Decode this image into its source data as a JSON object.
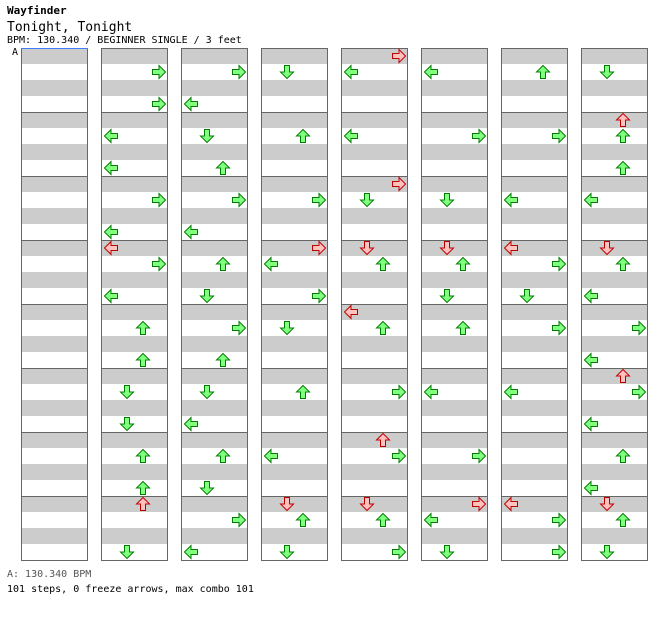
{
  "header": {
    "title": "Wayfinder",
    "song": "Tonight, Tonight",
    "info": "BPM: 130.340 / BEGINNER SINGLE / 3 feet",
    "bpm_marker": "A"
  },
  "footer": {
    "bpm_line": "A: 130.340 BPM",
    "stats": "101 steps, 0 freeze arrows, max combo 101"
  },
  "colors": {
    "stripe": "#cccccc",
    "arrow_green_fill": "#80ff80",
    "arrow_green_stroke": "#008000",
    "arrow_red_fill": "#ffc0c0",
    "arrow_red_stroke": "#c00000",
    "bpm_line": "#4080ff"
  },
  "chart_data": {
    "type": "step-chart",
    "columns": 8,
    "measures_per_column": 8,
    "lanes": [
      "left",
      "down",
      "up",
      "right"
    ],
    "notes": [
      {
        "c": 1,
        "m": 0,
        "b": 1,
        "d": "right",
        "k": "g"
      },
      {
        "c": 1,
        "m": 0,
        "b": 3,
        "d": "right",
        "k": "g"
      },
      {
        "c": 1,
        "m": 1,
        "b": 1,
        "d": "left",
        "k": "g"
      },
      {
        "c": 1,
        "m": 1,
        "b": 3,
        "d": "left",
        "k": "g"
      },
      {
        "c": 1,
        "m": 2,
        "b": 1,
        "d": "right",
        "k": "g"
      },
      {
        "c": 1,
        "m": 2,
        "b": 3,
        "d": "left",
        "k": "g"
      },
      {
        "c": 1,
        "m": 3,
        "b": 0,
        "d": "left",
        "k": "r"
      },
      {
        "c": 1,
        "m": 3,
        "b": 1,
        "d": "right",
        "k": "g"
      },
      {
        "c": 1,
        "m": 3,
        "b": 3,
        "d": "left",
        "k": "g"
      },
      {
        "c": 1,
        "m": 4,
        "b": 1,
        "d": "up",
        "k": "g"
      },
      {
        "c": 1,
        "m": 4,
        "b": 3,
        "d": "up",
        "k": "g"
      },
      {
        "c": 1,
        "m": 5,
        "b": 1,
        "d": "down",
        "k": "g"
      },
      {
        "c": 1,
        "m": 5,
        "b": 3,
        "d": "down",
        "k": "g"
      },
      {
        "c": 1,
        "m": 6,
        "b": 1,
        "d": "up",
        "k": "g"
      },
      {
        "c": 1,
        "m": 6,
        "b": 3,
        "d": "up",
        "k": "g"
      },
      {
        "c": 1,
        "m": 7,
        "b": 0,
        "d": "up",
        "k": "r"
      },
      {
        "c": 1,
        "m": 7,
        "b": 3,
        "d": "down",
        "k": "g"
      },
      {
        "c": 2,
        "m": 0,
        "b": 1,
        "d": "right",
        "k": "g"
      },
      {
        "c": 2,
        "m": 0,
        "b": 3,
        "d": "left",
        "k": "g"
      },
      {
        "c": 2,
        "m": 1,
        "b": 1,
        "d": "down",
        "k": "g"
      },
      {
        "c": 2,
        "m": 1,
        "b": 3,
        "d": "up",
        "k": "g"
      },
      {
        "c": 2,
        "m": 2,
        "b": 1,
        "d": "right",
        "k": "g"
      },
      {
        "c": 2,
        "m": 2,
        "b": 3,
        "d": "left",
        "k": "g"
      },
      {
        "c": 2,
        "m": 3,
        "b": 1,
        "d": "up",
        "k": "g"
      },
      {
        "c": 2,
        "m": 3,
        "b": 3,
        "d": "down",
        "k": "g"
      },
      {
        "c": 2,
        "m": 4,
        "b": 1,
        "d": "right",
        "k": "g"
      },
      {
        "c": 2,
        "m": 4,
        "b": 3,
        "d": "up",
        "k": "g"
      },
      {
        "c": 2,
        "m": 5,
        "b": 1,
        "d": "down",
        "k": "g"
      },
      {
        "c": 2,
        "m": 5,
        "b": 3,
        "d": "left",
        "k": "g"
      },
      {
        "c": 2,
        "m": 6,
        "b": 1,
        "d": "up",
        "k": "g"
      },
      {
        "c": 2,
        "m": 6,
        "b": 3,
        "d": "down",
        "k": "g"
      },
      {
        "c": 2,
        "m": 7,
        "b": 1,
        "d": "right",
        "k": "g"
      },
      {
        "c": 2,
        "m": 7,
        "b": 3,
        "d": "left",
        "k": "g"
      },
      {
        "c": 3,
        "m": 0,
        "b": 1,
        "d": "down",
        "k": "g"
      },
      {
        "c": 3,
        "m": 1,
        "b": 1,
        "d": "up",
        "k": "g"
      },
      {
        "c": 3,
        "m": 2,
        "b": 1,
        "d": "right",
        "k": "g"
      },
      {
        "c": 3,
        "m": 3,
        "b": 0,
        "d": "right",
        "k": "r"
      },
      {
        "c": 3,
        "m": 3,
        "b": 1,
        "d": "left",
        "k": "g"
      },
      {
        "c": 3,
        "m": 3,
        "b": 3,
        "d": "right",
        "k": "g"
      },
      {
        "c": 3,
        "m": 4,
        "b": 1,
        "d": "down",
        "k": "g"
      },
      {
        "c": 3,
        "m": 5,
        "b": 1,
        "d": "up",
        "k": "g"
      },
      {
        "c": 3,
        "m": 6,
        "b": 1,
        "d": "left",
        "k": "g"
      },
      {
        "c": 3,
        "m": 7,
        "b": 0,
        "d": "down",
        "k": "r"
      },
      {
        "c": 3,
        "m": 7,
        "b": 1,
        "d": "up",
        "k": "g"
      },
      {
        "c": 3,
        "m": 7,
        "b": 3,
        "d": "down",
        "k": "g"
      },
      {
        "c": 4,
        "m": 0,
        "b": 0,
        "d": "right",
        "k": "r"
      },
      {
        "c": 4,
        "m": 0,
        "b": 1,
        "d": "left",
        "k": "g"
      },
      {
        "c": 4,
        "m": 1,
        "b": 1,
        "d": "left",
        "k": "g"
      },
      {
        "c": 4,
        "m": 2,
        "b": 0,
        "d": "right",
        "k": "r"
      },
      {
        "c": 4,
        "m": 2,
        "b": 1,
        "d": "down",
        "k": "g"
      },
      {
        "c": 4,
        "m": 3,
        "b": 0,
        "d": "down",
        "k": "r"
      },
      {
        "c": 4,
        "m": 3,
        "b": 1,
        "d": "up",
        "k": "g"
      },
      {
        "c": 4,
        "m": 4,
        "b": 0,
        "d": "left",
        "k": "r"
      },
      {
        "c": 4,
        "m": 4,
        "b": 1,
        "d": "up",
        "k": "g"
      },
      {
        "c": 4,
        "m": 5,
        "b": 1,
        "d": "right",
        "k": "g"
      },
      {
        "c": 4,
        "m": 6,
        "b": 0,
        "d": "up",
        "k": "r"
      },
      {
        "c": 4,
        "m": 6,
        "b": 1,
        "d": "right",
        "k": "g"
      },
      {
        "c": 4,
        "m": 7,
        "b": 0,
        "d": "down",
        "k": "r"
      },
      {
        "c": 4,
        "m": 7,
        "b": 1,
        "d": "up",
        "k": "g"
      },
      {
        "c": 4,
        "m": 7,
        "b": 3,
        "d": "right",
        "k": "g"
      },
      {
        "c": 5,
        "m": 0,
        "b": 1,
        "d": "left",
        "k": "g"
      },
      {
        "c": 5,
        "m": 1,
        "b": 1,
        "d": "right",
        "k": "g"
      },
      {
        "c": 5,
        "m": 2,
        "b": 1,
        "d": "down",
        "k": "g"
      },
      {
        "c": 5,
        "m": 3,
        "b": 0,
        "d": "down",
        "k": "r"
      },
      {
        "c": 5,
        "m": 3,
        "b": 1,
        "d": "up",
        "k": "g"
      },
      {
        "c": 5,
        "m": 3,
        "b": 3,
        "d": "down",
        "k": "g"
      },
      {
        "c": 5,
        "m": 4,
        "b": 1,
        "d": "up",
        "k": "g"
      },
      {
        "c": 5,
        "m": 5,
        "b": 1,
        "d": "left",
        "k": "g"
      },
      {
        "c": 5,
        "m": 6,
        "b": 1,
        "d": "right",
        "k": "g"
      },
      {
        "c": 5,
        "m": 7,
        "b": 0,
        "d": "right",
        "k": "r"
      },
      {
        "c": 5,
        "m": 7,
        "b": 1,
        "d": "left",
        "k": "g"
      },
      {
        "c": 5,
        "m": 7,
        "b": 3,
        "d": "down",
        "k": "g"
      },
      {
        "c": 6,
        "m": 0,
        "b": 1,
        "d": "up",
        "k": "g"
      },
      {
        "c": 6,
        "m": 1,
        "b": 1,
        "d": "right",
        "k": "g"
      },
      {
        "c": 6,
        "m": 2,
        "b": 1,
        "d": "left",
        "k": "g"
      },
      {
        "c": 6,
        "m": 3,
        "b": 0,
        "d": "left",
        "k": "r"
      },
      {
        "c": 6,
        "m": 3,
        "b": 1,
        "d": "right",
        "k": "g"
      },
      {
        "c": 6,
        "m": 3,
        "b": 3,
        "d": "down",
        "k": "g"
      },
      {
        "c": 6,
        "m": 4,
        "b": 1,
        "d": "right",
        "k": "g"
      },
      {
        "c": 6,
        "m": 5,
        "b": 1,
        "d": "left",
        "k": "g"
      },
      {
        "c": 6,
        "m": 7,
        "b": 0,
        "d": "left",
        "k": "r"
      },
      {
        "c": 6,
        "m": 7,
        "b": 1,
        "d": "right",
        "k": "g"
      },
      {
        "c": 6,
        "m": 7,
        "b": 3,
        "d": "right",
        "k": "g"
      },
      {
        "c": 7,
        "m": 0,
        "b": 1,
        "d": "down",
        "k": "g"
      },
      {
        "c": 7,
        "m": 1,
        "b": 0,
        "d": "up",
        "k": "r"
      },
      {
        "c": 7,
        "m": 1,
        "b": 1,
        "d": "up",
        "k": "g"
      },
      {
        "c": 7,
        "m": 1,
        "b": 3,
        "d": "up",
        "k": "g"
      },
      {
        "c": 7,
        "m": 2,
        "b": 1,
        "d": "left",
        "k": "g"
      },
      {
        "c": 7,
        "m": 3,
        "b": 0,
        "d": "down",
        "k": "r"
      },
      {
        "c": 7,
        "m": 3,
        "b": 1,
        "d": "up",
        "k": "g"
      },
      {
        "c": 7,
        "m": 3,
        "b": 3,
        "d": "left",
        "k": "g"
      },
      {
        "c": 7,
        "m": 4,
        "b": 1,
        "d": "right",
        "k": "g"
      },
      {
        "c": 7,
        "m": 4,
        "b": 3,
        "d": "left",
        "k": "g"
      },
      {
        "c": 7,
        "m": 5,
        "b": 0,
        "d": "up",
        "k": "r"
      },
      {
        "c": 7,
        "m": 5,
        "b": 1,
        "d": "right",
        "k": "g"
      },
      {
        "c": 7,
        "m": 5,
        "b": 3,
        "d": "left",
        "k": "g"
      },
      {
        "c": 7,
        "m": 6,
        "b": 1,
        "d": "up",
        "k": "g"
      },
      {
        "c": 7,
        "m": 6,
        "b": 3,
        "d": "left",
        "k": "g"
      },
      {
        "c": 7,
        "m": 7,
        "b": 0,
        "d": "down",
        "k": "r"
      },
      {
        "c": 7,
        "m": 7,
        "b": 1,
        "d": "up",
        "k": "g"
      },
      {
        "c": 7,
        "m": 7,
        "b": 3,
        "d": "down",
        "k": "g"
      }
    ]
  }
}
